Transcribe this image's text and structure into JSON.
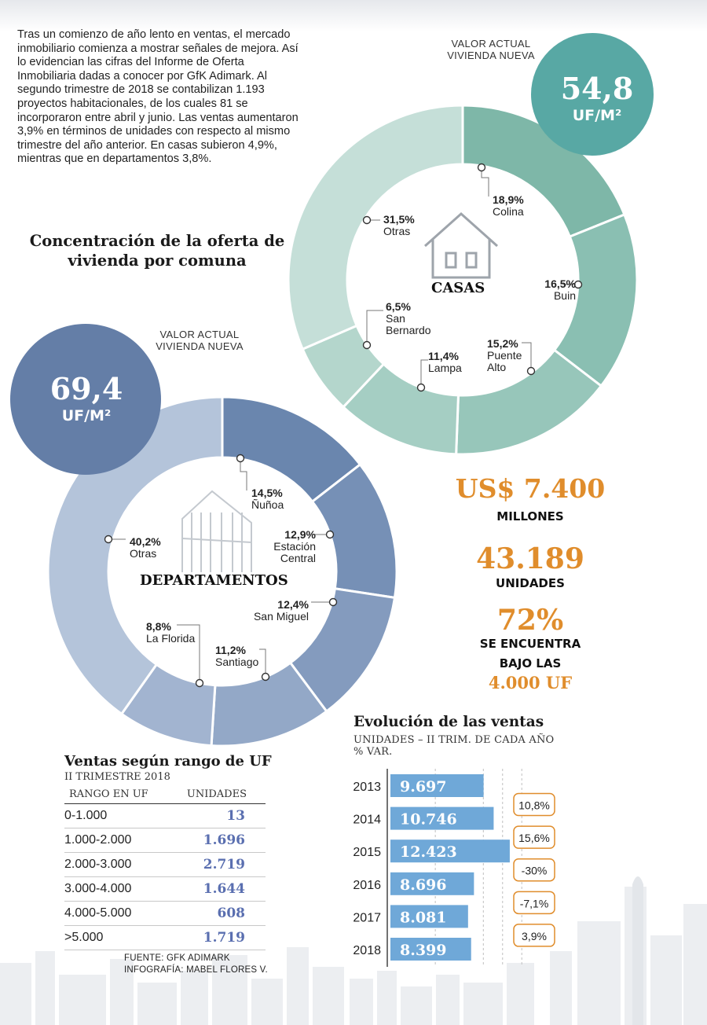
{
  "intro_text": "Tras un comienzo de año lento en ventas, el mercado inmobiliario comienza a mostrar señales de mejora. Así lo evidencian las cifras del Informe de Oferta Inmobiliaria dadas a conocer por GfK Adimark. Al segundo trimestre de 2018 se contabilizan 1.193 proyectos habitacionales, de los cuales 81 se incorporaron entre abril y junio. Las ventas aumentaron 3,9% en términos de unidades con respecto al mismo trimestre del año anterior. En casas subieron 4,9%, mientras que en departamentos 3,8%.",
  "concentration_title": "Concentración de la oferta de vivienda por comuna",
  "casas": {
    "value_label": "VALOR ACTUAL VIVIENDA NUEVA",
    "value": "54,8",
    "unit": "UF/M²",
    "title": "CASAS",
    "icon": "house-icon",
    "color": "#8abfb2"
  },
  "departamentos": {
    "value_label": "VALOR ACTUAL VIVIENDA NUEVA",
    "value": "69,4",
    "unit": "UF/M²",
    "title": "DEPARTAMENTOS",
    "icon": "building-icon",
    "color": "#6a86ae"
  },
  "stats": {
    "amount": "US$ 7.400",
    "amount_label": "MILLONES",
    "units": "43.189",
    "units_label": "UNIDADES",
    "percent": "72%",
    "percent_label_1": "SE ENCUENTRA",
    "percent_label_2": "BAJO LAS",
    "percent_value": "4.000 UF",
    "accent_color": "#e08d2c"
  },
  "range_table": {
    "title": "Ventas según rango de UF",
    "subtitle": "II TRIMESTRE 2018",
    "col_range": "RANGO EN UF",
    "col_units": "UNIDADES",
    "rows": [
      {
        "range": "0-1.000",
        "units": "13"
      },
      {
        "range": "1.000-2.000",
        "units": "1.696"
      },
      {
        "range": "2.000-3.000",
        "units": "2.719"
      },
      {
        "range": "3.000-4.000",
        "units": "1.644"
      },
      {
        "range": "4.000-5.000",
        "units": "608"
      },
      {
        "range": ">5.000",
        "units": "1.719"
      }
    ]
  },
  "source": "FUENTE: GFK ADIMARK",
  "credit": "INFOGRAFÍA: MABEL FLORES V.",
  "evolution": {
    "title": "Evolución de las ventas",
    "subtitle_1": "UNIDADES – II TRIM. DE CADA AÑO",
    "subtitle_2": "% VAR."
  },
  "chart_data": [
    {
      "type": "pie",
      "title": "CASAS",
      "hole": true,
      "slices": [
        {
          "label": "Colina",
          "value": 18.9,
          "text": "18,9%",
          "color": "#7eb7a8"
        },
        {
          "label": "Buin",
          "value": 16.5,
          "text": "16,5%",
          "color": "#8abfb2"
        },
        {
          "label": "Puente Alto",
          "value": 15.2,
          "text": "15,2%",
          "color": "#97c6ba"
        },
        {
          "label": "Lampa",
          "value": 11.4,
          "text": "11,4%",
          "color": "#a5cec3"
        },
        {
          "label": "San Bernardo",
          "value": 6.5,
          "text": "6,5%",
          "color": "#b4d6cc"
        },
        {
          "label": "Otras",
          "value": 31.5,
          "text": "31,5%",
          "color": "#c5dfd8"
        }
      ]
    },
    {
      "type": "pie",
      "title": "DEPARTAMENTOS",
      "hole": true,
      "slices": [
        {
          "label": "Ñuñoa",
          "value": 14.5,
          "text": "14,5%",
          "color": "#6a86ae"
        },
        {
          "label": "Estación Central",
          "value": 12.9,
          "text": "12,9%",
          "color": "#7690b6"
        },
        {
          "label": "San Miguel",
          "value": 12.4,
          "text": "12,4%",
          "color": "#849bbe"
        },
        {
          "label": "Santiago",
          "value": 11.2,
          "text": "11,2%",
          "color": "#93a8c7"
        },
        {
          "label": "La Florida",
          "value": 8.8,
          "text": "8,8%",
          "color": "#a2b4d0"
        },
        {
          "label": "Otras",
          "value": 40.2,
          "text": "40,2%",
          "color": "#b4c4da"
        }
      ]
    },
    {
      "type": "bar",
      "orientation": "horizontal",
      "title": "Evolución de las ventas",
      "categories": [
        "2013",
        "2014",
        "2015",
        "2016",
        "2017",
        "2018"
      ],
      "values": [
        9697,
        10746,
        12423,
        8696,
        8081,
        8399
      ],
      "value_labels": [
        "9.697",
        "10.746",
        "12.423",
        "8.696",
        "8.081",
        "8.399"
      ],
      "changes": [
        "10,8%",
        "15,6%",
        "-30%",
        "-7,1%",
        "3,9%"
      ],
      "xlim": [
        0,
        15000
      ],
      "bar_color": "#6fa8d8",
      "change_color": "#e08d2c",
      "grid": true
    }
  ]
}
